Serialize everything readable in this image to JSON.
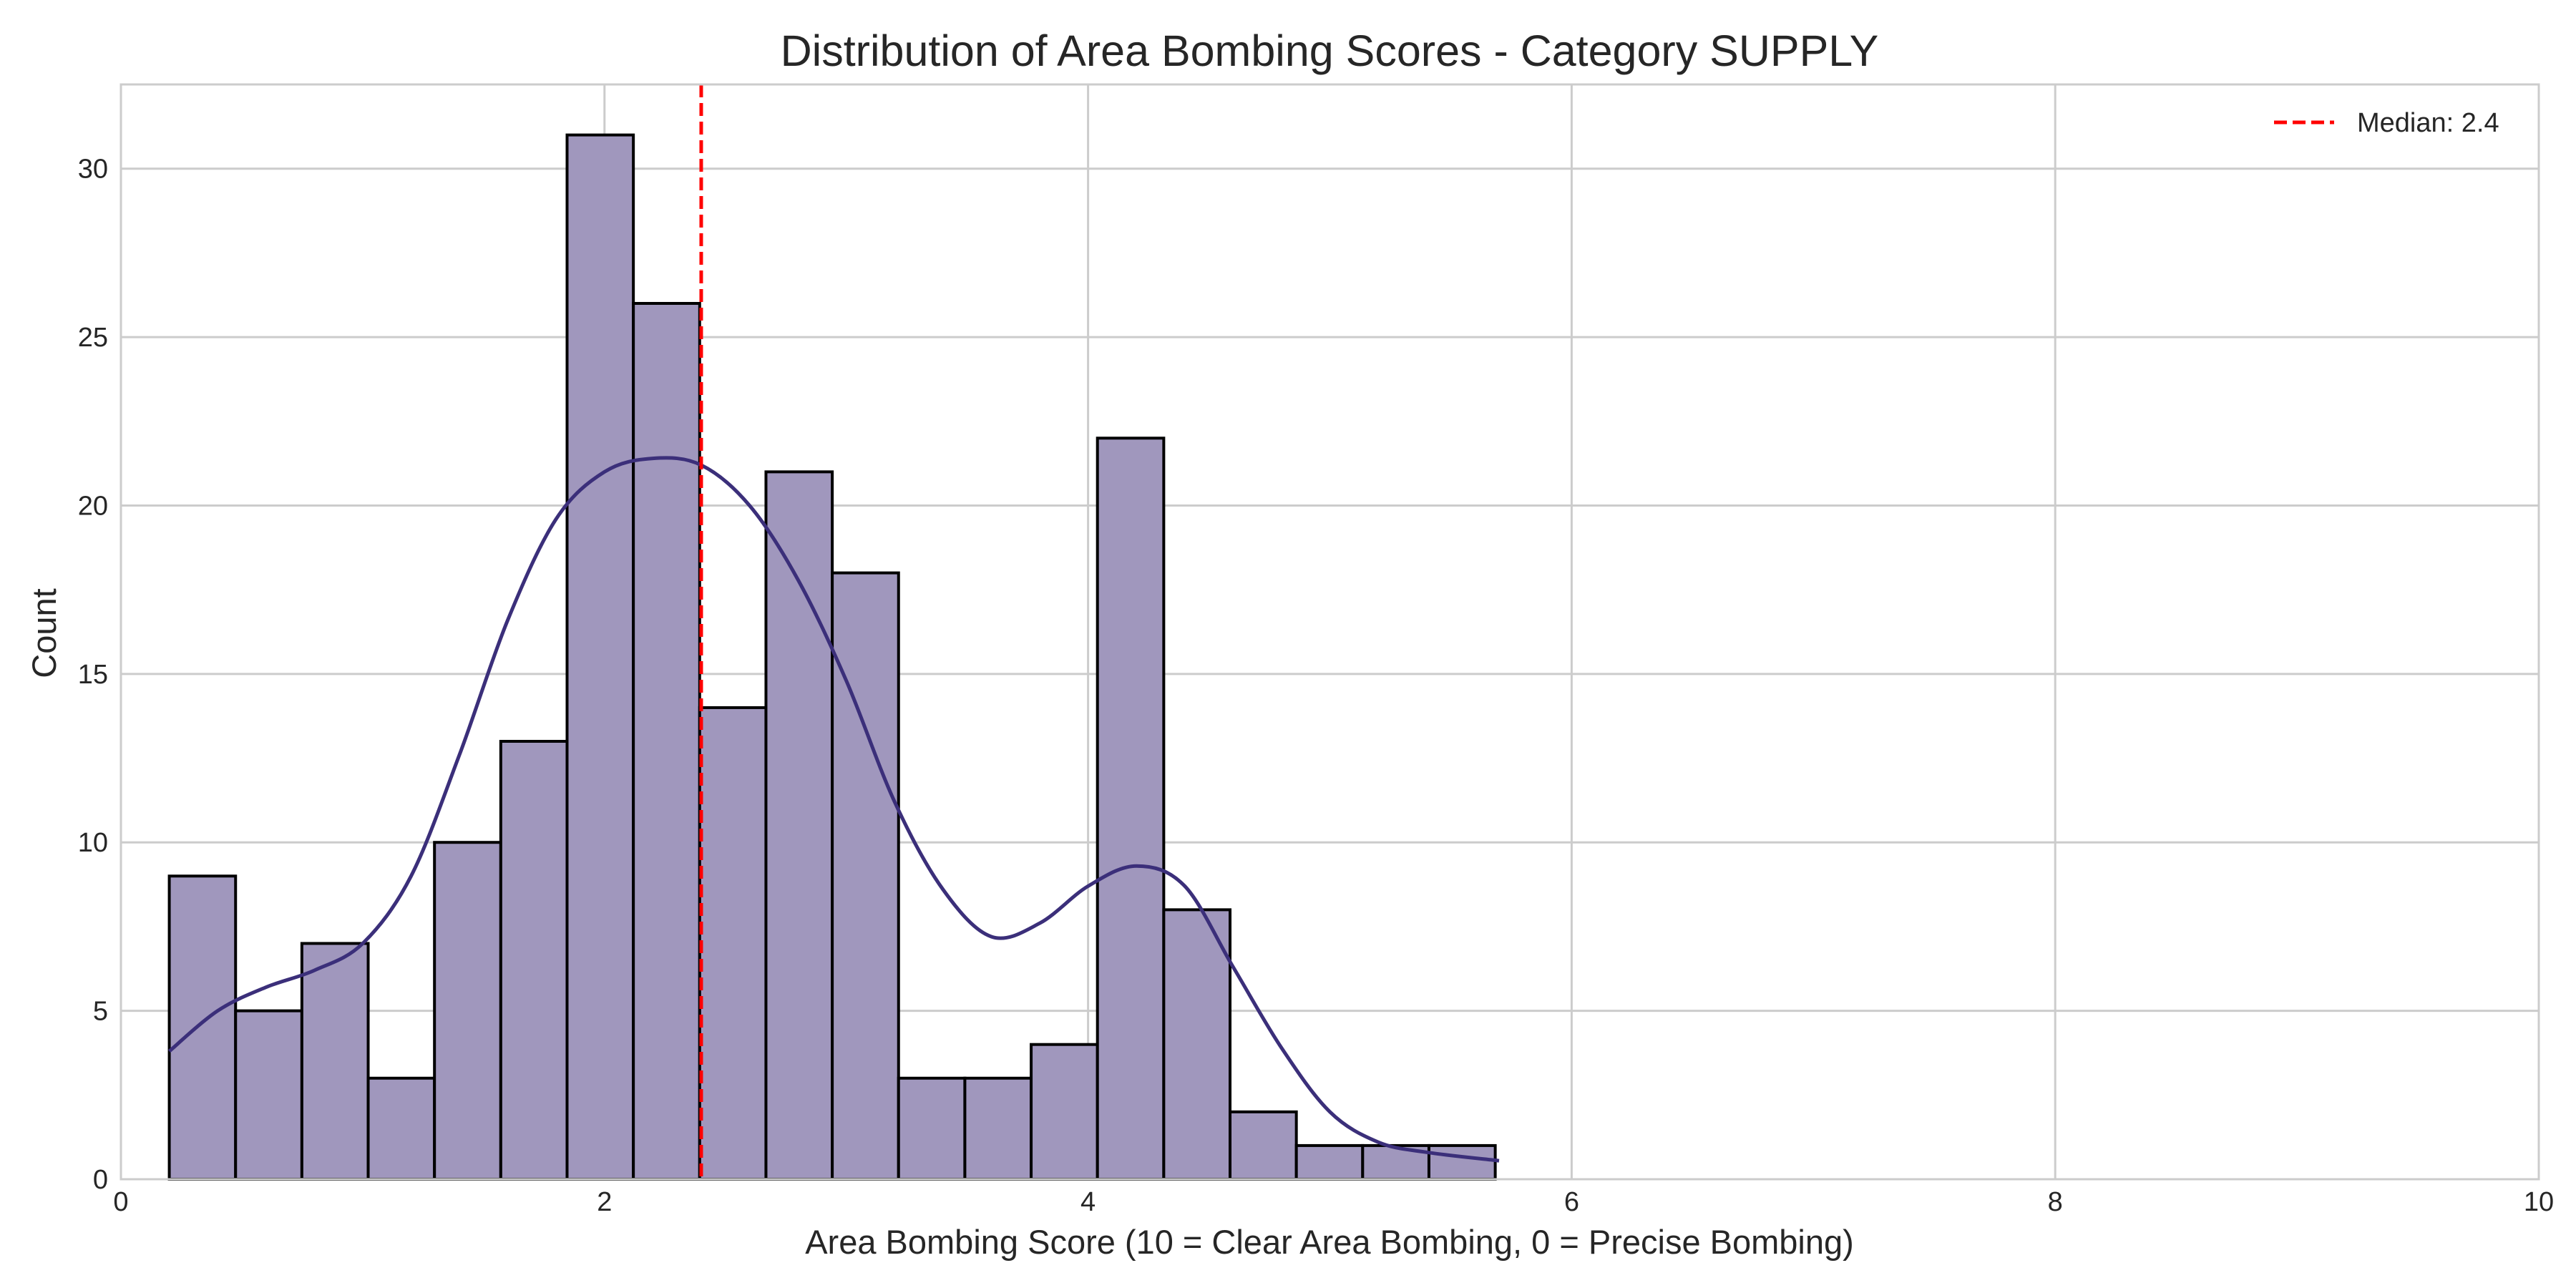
{
  "chart_data": {
    "type": "bar",
    "title": "Distribution of Area Bombing Scores - Category SUPPLY",
    "xlabel": "Area Bombing Score (10 = Clear Area Bombing, 0 = Precise Bombing)",
    "ylabel": "Count",
    "xlim": [
      0,
      10
    ],
    "ylim": [
      0,
      32.5
    ],
    "xticks": [
      0,
      2,
      4,
      6,
      8,
      10
    ],
    "yticks": [
      0,
      5,
      10,
      15,
      20,
      25,
      30
    ],
    "xtick_labels": [
      "0",
      "2",
      "4",
      "6",
      "8",
      "10"
    ],
    "ytick_labels": [
      "0",
      "5",
      "10",
      "15",
      "20",
      "25",
      "30"
    ],
    "grid": true,
    "legend_position": "top-right",
    "bin_start": 0.2,
    "bin_width": 0.2742,
    "counts": [
      9,
      5,
      7,
      3,
      10,
      13,
      31,
      26,
      14,
      21,
      18,
      3,
      3,
      4,
      22,
      8,
      2,
      1,
      1,
      1
    ],
    "bar_color": "#a097bd",
    "edge_color": "#000000",
    "kde": {
      "color": "#3b2f7a",
      "x": [
        0.2,
        0.4,
        0.6,
        0.8,
        1.0,
        1.2,
        1.4,
        1.6,
        1.8,
        2.0,
        2.2,
        2.4,
        2.6,
        2.8,
        3.0,
        3.2,
        3.4,
        3.6,
        3.8,
        4.0,
        4.2,
        4.4,
        4.6,
        4.8,
        5.0,
        5.2,
        5.4,
        5.7
      ],
      "y": [
        3.8,
        5.0,
        5.7,
        6.2,
        7.0,
        9.0,
        12.6,
        16.6,
        19.6,
        21.0,
        21.4,
        21.2,
        20.0,
        17.8,
        14.8,
        11.2,
        8.6,
        7.2,
        7.6,
        8.7,
        9.3,
        8.7,
        6.3,
        3.9,
        2.0,
        1.1,
        0.8,
        0.55
      ]
    },
    "median": {
      "value": 2.4,
      "label": "Median: 2.4",
      "color": "#ff0000"
    }
  }
}
